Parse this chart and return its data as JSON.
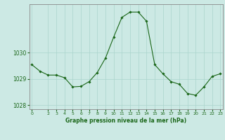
{
  "x": [
    0,
    1,
    2,
    3,
    4,
    5,
    6,
    7,
    8,
    9,
    10,
    11,
    12,
    13,
    14,
    15,
    16,
    17,
    18,
    19,
    20,
    21,
    22,
    23
  ],
  "y": [
    1029.55,
    1029.3,
    1029.15,
    1029.15,
    1029.05,
    1028.7,
    1028.72,
    1028.9,
    1029.25,
    1029.8,
    1030.6,
    1031.35,
    1031.55,
    1031.55,
    1031.2,
    1029.55,
    1029.2,
    1028.9,
    1028.8,
    1028.45,
    1028.38,
    1028.7,
    1029.1,
    1029.2
  ],
  "line_color": "#1a6618",
  "marker_color": "#1a6618",
  "bg_color": "#cce9e4",
  "grid_color": "#aad4cc",
  "xlabel": "Graphe pression niveau de la mer (hPa)",
  "xlabel_color": "#1a6618",
  "tick_color": "#1a6618",
  "axis_color": "#888888",
  "ylim": [
    1027.85,
    1031.85
  ],
  "yticks": [
    1028,
    1029,
    1030
  ],
  "xticks": [
    0,
    2,
    3,
    4,
    5,
    6,
    7,
    8,
    9,
    10,
    11,
    12,
    13,
    14,
    15,
    16,
    17,
    18,
    19,
    20,
    21,
    22,
    23
  ],
  "figsize": [
    3.2,
    2.0
  ],
  "dpi": 100
}
